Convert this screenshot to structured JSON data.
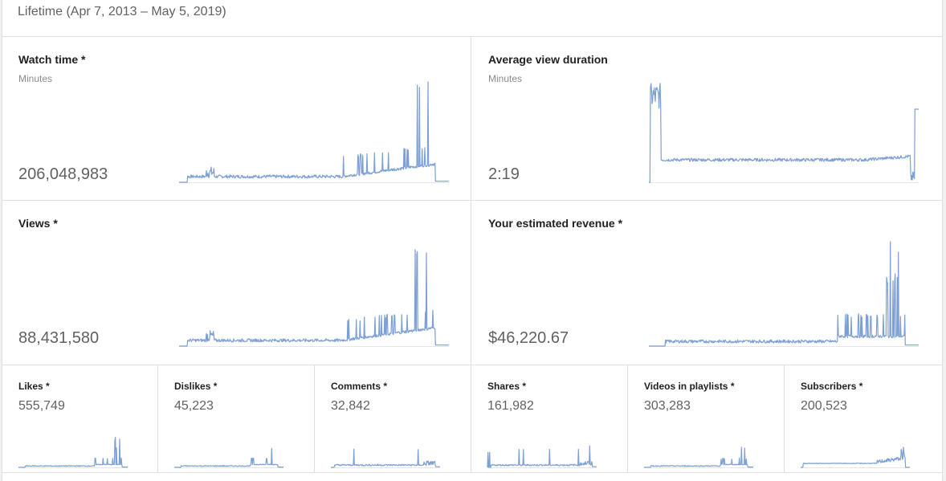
{
  "period_label": "Lifetime (Apr 7, 2013 – May 5, 2019)",
  "line_color": "#7c9fd4",
  "big_cards": [
    {
      "id": "watch-time",
      "title": "Watch time *",
      "subtitle": "Minutes",
      "value": "206,048,983",
      "pattern": "growth-spikes"
    },
    {
      "id": "avg-view-duration",
      "title": "Average view duration",
      "subtitle": "Minutes",
      "value": "2:19",
      "pattern": "early-peak-flat"
    },
    {
      "id": "views",
      "title": "Views *",
      "subtitle": "",
      "value": "88,431,580",
      "pattern": "growth-spikes"
    },
    {
      "id": "estimated-revenue",
      "title": "Your estimated revenue *",
      "subtitle": "",
      "value": "$46,220.67",
      "pattern": "late-spike"
    }
  ],
  "small_cards": [
    {
      "id": "likes",
      "title": "Likes *",
      "value": "555,749",
      "pattern": "late-spike"
    },
    {
      "id": "dislikes",
      "title": "Dislikes *",
      "value": "45,223",
      "pattern": "late-spike"
    },
    {
      "id": "comments",
      "title": "Comments *",
      "value": "32,842",
      "pattern": "scattered-spikes"
    },
    {
      "id": "shares",
      "title": "Shares *",
      "value": "161,982",
      "pattern": "scattered-spikes"
    },
    {
      "id": "videos-in-playlists",
      "title": "Videos in playlists *",
      "value": "303,283",
      "pattern": "late-spike"
    },
    {
      "id": "subscribers",
      "title": "Subscribers *",
      "value": "200,523",
      "pattern": "late-rise"
    }
  ]
}
